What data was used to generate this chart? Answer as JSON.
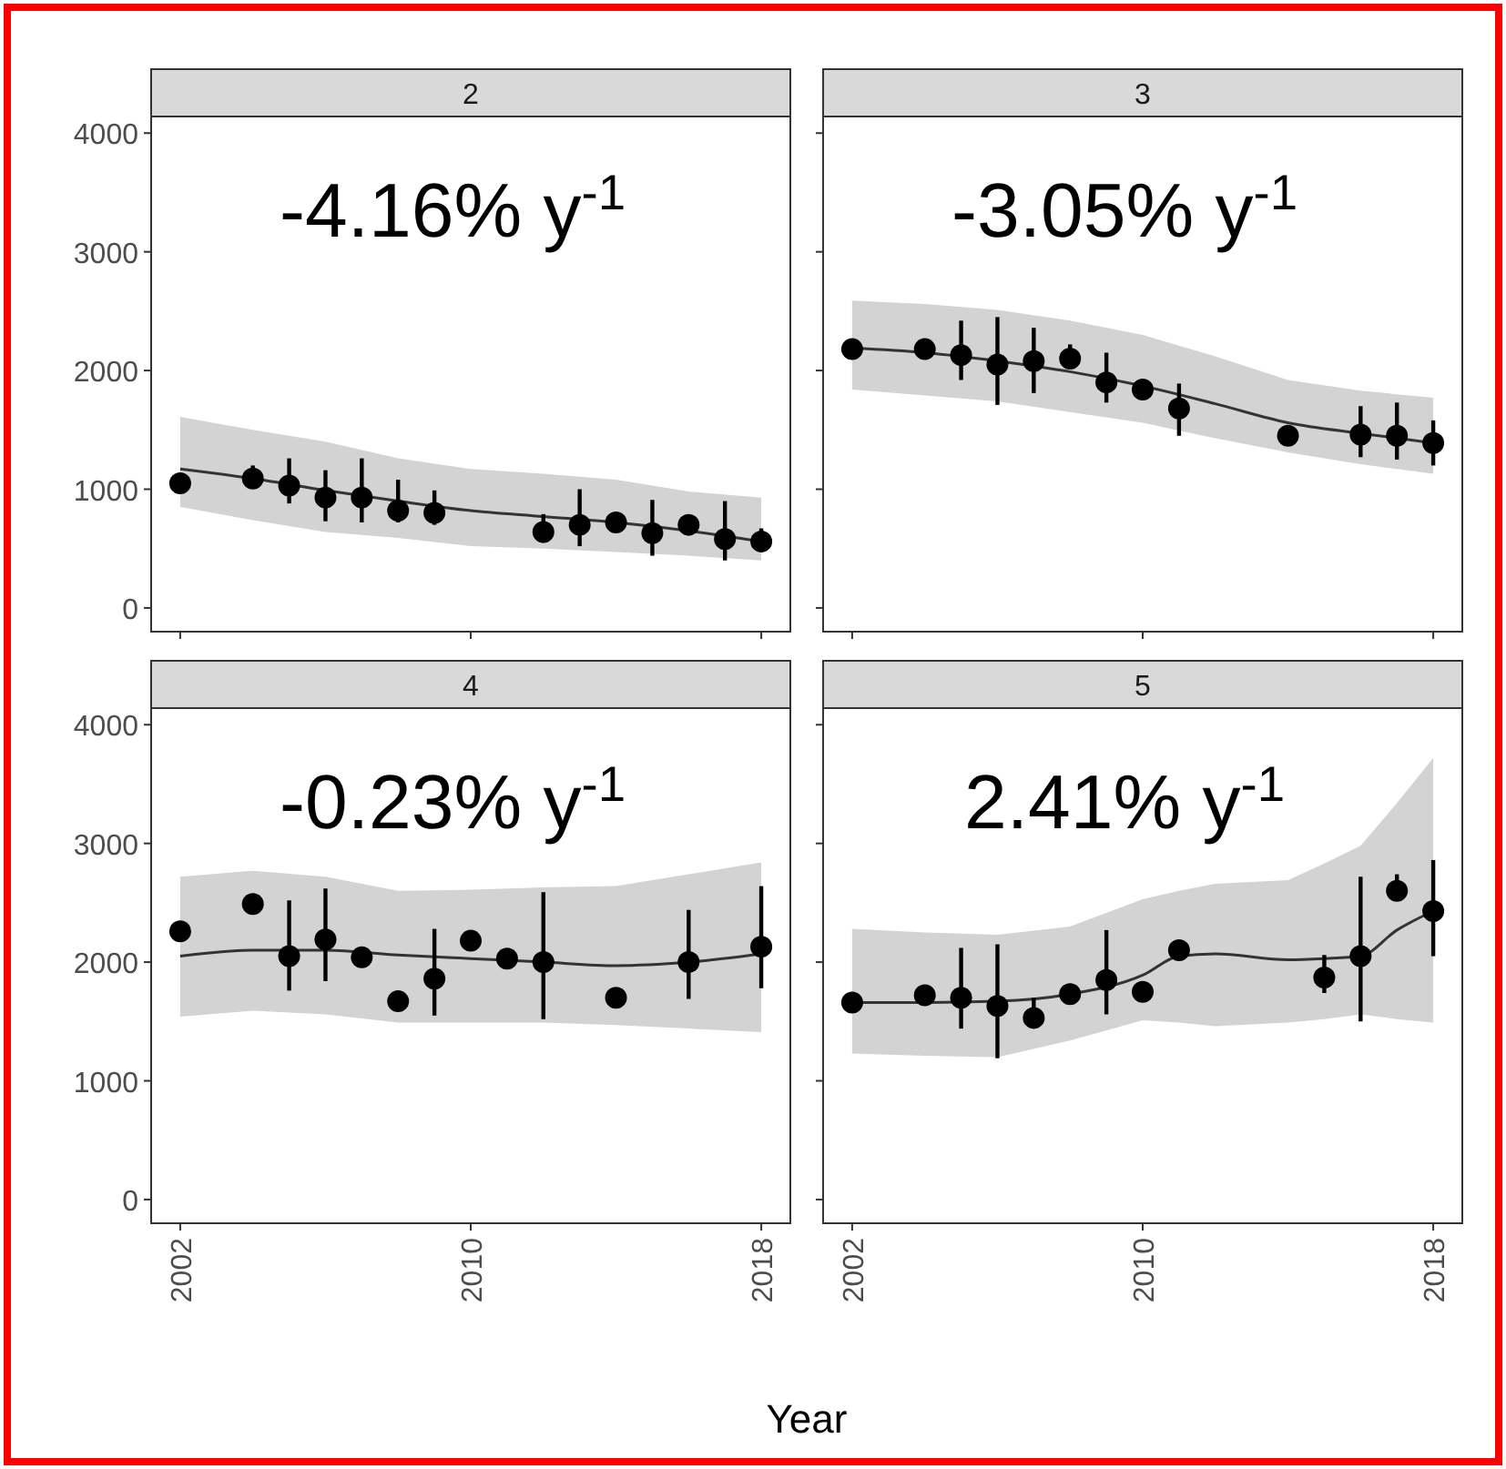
{
  "chart_data": [
    {
      "type": "scatter",
      "title": "2",
      "annotations": [
        "-4.16% y$^{-1}$"
      ],
      "xlim": [
        2001.2,
        2018.8
      ],
      "xticks": [
        2002,
        2010,
        2018
      ],
      "ylim": [
        -200,
        4140
      ],
      "yticks": [
        0,
        1000,
        2000,
        3000,
        4000
      ],
      "tick_labels": "y",
      "series": [
        {
          "type": "line",
          "color": "#333333",
          "x": [
            2002,
            2004,
            2006,
            2008,
            2010,
            2012,
            2014,
            2016,
            2018
          ],
          "values": [
            1170,
            1090,
            990,
            900,
            820,
            770,
            720,
            650,
            560
          ],
          "lower": [
            850,
            740,
            640,
            590,
            520,
            500,
            470,
            440,
            400
          ],
          "upper": [
            1610,
            1500,
            1400,
            1260,
            1170,
            1130,
            1080,
            980,
            930
          ]
        },
        {
          "marker": "circle",
          "color": "#000000",
          "x": [
            2002,
            2004,
            2005,
            2006,
            2007,
            2008,
            2009,
            2012,
            2013,
            2014,
            2015,
            2016,
            2017,
            2018
          ],
          "values": [
            1050,
            1090,
            1030,
            930,
            930,
            820,
            800,
            640,
            700,
            720,
            630,
            700,
            580,
            560
          ],
          "errors": [
            null,
            [
              1020,
              1200
            ],
            [
              880,
              1260
            ],
            [
              730,
              1160
            ],
            [
              720,
              1260
            ],
            [
              720,
              1080
            ],
            [
              700,
              990
            ],
            [
              550,
              790
            ],
            [
              520,
              1000
            ],
            null,
            [
              440,
              910
            ],
            null,
            [
              400,
              900
            ],
            [
              470,
              670
            ]
          ]
        }
      ]
    },
    {
      "type": "scatter",
      "title": "3",
      "annotations": [
        "-3.05% y$^{-1}$"
      ],
      "xlim": [
        2001.2,
        2018.8
      ],
      "xticks": [
        2002,
        2010,
        2018
      ],
      "ylim": [
        -200,
        4140
      ],
      "yticks": [
        0,
        1000,
        2000,
        3000,
        4000
      ],
      "tick_labels": false,
      "series": [
        {
          "type": "line",
          "color": "#333333",
          "x": [
            2002,
            2004,
            2006,
            2008,
            2010,
            2012,
            2014,
            2016,
            2018
          ],
          "values": [
            2190,
            2150,
            2080,
            1990,
            1870,
            1720,
            1560,
            1470,
            1390
          ],
          "lower": [
            1840,
            1790,
            1740,
            1650,
            1560,
            1430,
            1310,
            1210,
            1130
          ],
          "upper": [
            2590,
            2560,
            2510,
            2420,
            2300,
            2120,
            1920,
            1830,
            1770
          ]
        },
        {
          "marker": "circle",
          "color": "#000000",
          "x": [
            2002,
            2004,
            2005,
            2006,
            2007,
            2008,
            2009,
            2010,
            2011,
            2014,
            2016,
            2017,
            2018
          ],
          "values": [
            2180,
            2180,
            2130,
            2050,
            2080,
            2100,
            1900,
            1840,
            1680,
            1450,
            1460,
            1450,
            1390
          ],
          "errors": [
            null,
            null,
            [
              1920,
              2420
            ],
            [
              1710,
              2450
            ],
            [
              1810,
              2360
            ],
            [
              2100,
              2220
            ],
            [
              1730,
              2150
            ],
            null,
            [
              1450,
              1890
            ],
            null,
            [
              1270,
              1700
            ],
            [
              1250,
              1730
            ],
            [
              1200,
              1580
            ]
          ]
        }
      ]
    },
    {
      "type": "scatter",
      "title": "4",
      "annotations": [
        "-0.23% y$^{-1}$"
      ],
      "xlim": [
        2001.2,
        2018.8
      ],
      "xticks": [
        2002,
        2010,
        2018
      ],
      "ylim": [
        -200,
        4140
      ],
      "yticks": [
        0,
        1000,
        2000,
        3000,
        4000
      ],
      "series": [
        {
          "type": "line",
          "color": "#333333",
          "x": [
            2002,
            2004,
            2006,
            2008,
            2010,
            2012,
            2014,
            2016,
            2018
          ],
          "values": [
            2050,
            2100,
            2100,
            2060,
            2030,
            2000,
            1970,
            2000,
            2070
          ],
          "lower": [
            1540,
            1590,
            1560,
            1490,
            1490,
            1490,
            1470,
            1440,
            1410
          ],
          "upper": [
            2720,
            2770,
            2720,
            2600,
            2610,
            2630,
            2640,
            2740,
            2840
          ]
        },
        {
          "marker": "circle",
          "color": "#000000",
          "x": [
            2002,
            2004,
            2005,
            2006,
            2007,
            2008,
            2009,
            2010,
            2011,
            2012,
            2014,
            2016,
            2018
          ],
          "values": [
            2260,
            2490,
            2050,
            2190,
            2040,
            1670,
            1860,
            2180,
            2030,
            2000,
            1700,
            2000,
            2130
          ],
          "errors": [
            null,
            null,
            [
              1760,
              2520
            ],
            [
              1840,
              2620
            ],
            null,
            null,
            [
              1550,
              2280
            ],
            null,
            null,
            [
              1520,
              2590
            ],
            null,
            [
              1690,
              2440
            ],
            [
              1780,
              2640
            ]
          ]
        }
      ]
    },
    {
      "type": "scatter",
      "title": "5",
      "xlabel": "Year",
      "annotations": [
        "2.41% y$^{-1}$"
      ],
      "xlim": [
        2001.2,
        2018.8
      ],
      "xticks": [
        2002,
        2010,
        2018
      ],
      "ylim": [
        -200,
        4140
      ],
      "yticks": [
        0,
        1000,
        2000,
        3000,
        4000
      ],
      "tick_labels": "x",
      "series": [
        {
          "type": "line",
          "color": "#333333",
          "x": [
            2002,
            2004,
            2006,
            2008,
            2010,
            2011,
            2012,
            2014,
            2015,
            2016,
            2017,
            2018
          ],
          "values": [
            1660,
            1660,
            1670,
            1730,
            1890,
            2050,
            2070,
            2020,
            2030,
            2050,
            2270,
            2430
          ],
          "lower": [
            1230,
            1210,
            1200,
            1340,
            1510,
            1490,
            1460,
            1490,
            1520,
            1560,
            1520,
            1490
          ],
          "upper": [
            2280,
            2250,
            2230,
            2300,
            2530,
            2600,
            2660,
            2690,
            2830,
            2980,
            3340,
            3720
          ]
        },
        {
          "marker": "circle",
          "color": "#000000",
          "x": [
            2002,
            2004,
            2005,
            2006,
            2007,
            2008,
            2009,
            2010,
            2011,
            2015,
            2016,
            2017,
            2018
          ],
          "values": [
            1660,
            1720,
            1700,
            1630,
            1530,
            1730,
            1850,
            1750,
            2100,
            1870,
            2050,
            2600,
            2430
          ],
          "errors": [
            null,
            null,
            [
              1440,
              2120
            ],
            [
              1190,
              2150
            ],
            [
              1530,
              1700
            ],
            null,
            [
              1560,
              2270
            ],
            null,
            null,
            [
              1740,
              2060
            ],
            [
              1500,
              2720
            ],
            [
              2600,
              2740
            ],
            [
              2050,
              2860
            ]
          ]
        }
      ]
    }
  ]
}
